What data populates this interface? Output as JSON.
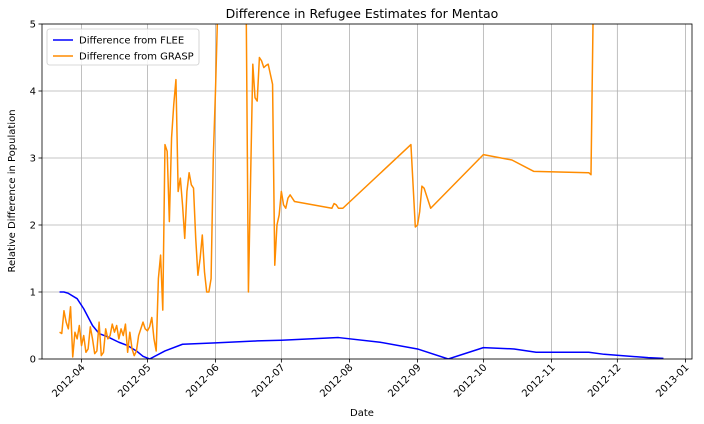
{
  "chart_data": {
    "type": "line",
    "title": "Difference in Refugee Estimates for Mentao",
    "xlabel": "Date",
    "ylabel": "Relative Difference in Population",
    "x_range": [
      "2012-03-14",
      "2013-01-04"
    ],
    "ylim": [
      0,
      5
    ],
    "y_ticks": [
      0,
      1,
      2,
      3,
      4,
      5
    ],
    "x_ticks": [
      "2012-04-01",
      "2012-05-01",
      "2012-06-01",
      "2012-07-01",
      "2012-08-01",
      "2012-09-01",
      "2012-10-01",
      "2012-11-01",
      "2012-12-01",
      "2013-01-01"
    ],
    "x_tick_labels": [
      "2012-04",
      "2012-05",
      "2012-06",
      "2012-07",
      "2012-08",
      "2012-09",
      "2012-10",
      "2012-11",
      "2012-12",
      "2013-01"
    ],
    "grid": true,
    "legend_position": "upper-left",
    "series": [
      {
        "name": "Difference from FLEE",
        "color": "#0000ff",
        "points": [
          [
            "2012-03-22",
            1.0
          ],
          [
            "2012-03-24",
            1.0
          ],
          [
            "2012-03-26",
            0.98
          ],
          [
            "2012-03-30",
            0.9
          ],
          [
            "2012-04-02",
            0.75
          ],
          [
            "2012-04-06",
            0.5
          ],
          [
            "2012-04-09",
            0.38
          ],
          [
            "2012-04-13",
            0.33
          ],
          [
            "2012-04-18",
            0.25
          ],
          [
            "2012-04-22",
            0.2
          ],
          [
            "2012-04-26",
            0.12
          ],
          [
            "2012-04-29",
            0.04
          ],
          [
            "2012-05-02",
            0.0
          ],
          [
            "2012-05-09",
            0.12
          ],
          [
            "2012-05-17",
            0.22
          ],
          [
            "2012-06-01",
            0.24
          ],
          [
            "2012-06-20",
            0.27
          ],
          [
            "2012-07-01",
            0.28
          ],
          [
            "2012-07-27",
            0.32
          ],
          [
            "2012-08-15",
            0.25
          ],
          [
            "2012-09-01",
            0.15
          ],
          [
            "2012-09-15",
            0.0
          ],
          [
            "2012-10-01",
            0.17
          ],
          [
            "2012-10-15",
            0.15
          ],
          [
            "2012-10-25",
            0.1
          ],
          [
            "2012-11-18",
            0.1
          ],
          [
            "2012-11-25",
            0.07
          ],
          [
            "2012-12-15",
            0.02
          ],
          [
            "2012-12-22",
            0.01
          ]
        ]
      },
      {
        "name": "Difference from GRASP",
        "color": "#ff8c00",
        "points": [
          [
            "2012-03-22",
            0.4
          ],
          [
            "2012-03-23",
            0.38
          ],
          [
            "2012-03-24",
            0.72
          ],
          [
            "2012-03-25",
            0.55
          ],
          [
            "2012-03-26",
            0.45
          ],
          [
            "2012-03-27",
            0.78
          ],
          [
            "2012-03-28",
            0.03
          ],
          [
            "2012-03-29",
            0.4
          ],
          [
            "2012-03-30",
            0.3
          ],
          [
            "2012-03-31",
            0.5
          ],
          [
            "2012-04-01",
            0.2
          ],
          [
            "2012-04-02",
            0.35
          ],
          [
            "2012-04-03",
            0.1
          ],
          [
            "2012-04-04",
            0.15
          ],
          [
            "2012-04-05",
            0.48
          ],
          [
            "2012-04-06",
            0.3
          ],
          [
            "2012-04-07",
            0.08
          ],
          [
            "2012-04-08",
            0.12
          ],
          [
            "2012-04-09",
            0.55
          ],
          [
            "2012-04-10",
            0.05
          ],
          [
            "2012-04-11",
            0.1
          ],
          [
            "2012-04-12",
            0.45
          ],
          [
            "2012-04-13",
            0.3
          ],
          [
            "2012-04-14",
            0.35
          ],
          [
            "2012-04-15",
            0.52
          ],
          [
            "2012-04-16",
            0.4
          ],
          [
            "2012-04-17",
            0.5
          ],
          [
            "2012-04-18",
            0.3
          ],
          [
            "2012-04-19",
            0.45
          ],
          [
            "2012-04-20",
            0.35
          ],
          [
            "2012-04-21",
            0.52
          ],
          [
            "2012-04-22",
            0.1
          ],
          [
            "2012-04-23",
            0.4
          ],
          [
            "2012-04-24",
            0.15
          ],
          [
            "2012-04-25",
            0.05
          ],
          [
            "2012-04-26",
            0.12
          ],
          [
            "2012-04-27",
            0.35
          ],
          [
            "2012-04-28",
            0.45
          ],
          [
            "2012-04-29",
            0.55
          ],
          [
            "2012-04-30",
            0.45
          ],
          [
            "2012-05-01",
            0.42
          ],
          [
            "2012-05-02",
            0.48
          ],
          [
            "2012-05-03",
            0.62
          ],
          [
            "2012-05-04",
            0.3
          ],
          [
            "2012-05-05",
            0.12
          ],
          [
            "2012-05-06",
            1.2
          ],
          [
            "2012-05-07",
            1.55
          ],
          [
            "2012-05-08",
            0.73
          ],
          [
            "2012-05-09",
            3.2
          ],
          [
            "2012-05-10",
            3.1
          ],
          [
            "2012-05-11",
            2.05
          ],
          [
            "2012-05-12",
            3.3
          ],
          [
            "2012-05-13",
            3.8
          ],
          [
            "2012-05-14",
            4.17
          ],
          [
            "2012-05-15",
            2.5
          ],
          [
            "2012-05-16",
            2.7
          ],
          [
            "2012-05-17",
            2.3
          ],
          [
            "2012-05-18",
            1.8
          ],
          [
            "2012-05-19",
            2.5
          ],
          [
            "2012-05-20",
            2.78
          ],
          [
            "2012-05-21",
            2.6
          ],
          [
            "2012-05-22",
            2.55
          ],
          [
            "2012-05-23",
            1.8
          ],
          [
            "2012-05-24",
            1.25
          ],
          [
            "2012-05-25",
            1.5
          ],
          [
            "2012-05-26",
            1.85
          ],
          [
            "2012-05-27",
            1.3
          ],
          [
            "2012-05-28",
            1.0
          ],
          [
            "2012-05-29",
            1.0
          ],
          [
            "2012-05-30",
            1.2
          ],
          [
            "2012-05-31",
            3.0
          ],
          [
            "2012-06-01",
            4.0
          ],
          [
            "2012-06-02",
            5.2
          ],
          [
            "2012-06-15",
            5.2
          ],
          [
            "2012-06-16",
            1.0
          ],
          [
            "2012-06-17",
            2.7
          ],
          [
            "2012-06-18",
            4.4
          ],
          [
            "2012-06-19",
            3.9
          ],
          [
            "2012-06-20",
            3.85
          ],
          [
            "2012-06-21",
            4.5
          ],
          [
            "2012-06-22",
            4.45
          ],
          [
            "2012-06-23",
            4.35
          ],
          [
            "2012-06-24",
            4.38
          ],
          [
            "2012-06-25",
            4.4
          ],
          [
            "2012-06-26",
            4.25
          ],
          [
            "2012-06-27",
            4.1
          ],
          [
            "2012-06-28",
            1.4
          ],
          [
            "2012-06-29",
            2.0
          ],
          [
            "2012-06-30",
            2.15
          ],
          [
            "2012-07-01",
            2.5
          ],
          [
            "2012-07-02",
            2.3
          ],
          [
            "2012-07-03",
            2.25
          ],
          [
            "2012-07-04",
            2.4
          ],
          [
            "2012-07-05",
            2.45
          ],
          [
            "2012-07-07",
            2.35
          ],
          [
            "2012-07-24",
            2.25
          ],
          [
            "2012-07-25",
            2.32
          ],
          [
            "2012-07-26",
            2.3
          ],
          [
            "2012-07-27",
            2.25
          ],
          [
            "2012-07-29",
            2.25
          ],
          [
            "2012-08-29",
            3.2
          ],
          [
            "2012-08-31",
            1.97
          ],
          [
            "2012-09-01",
            2.0
          ],
          [
            "2012-09-02",
            2.2
          ],
          [
            "2012-09-03",
            2.58
          ],
          [
            "2012-09-04",
            2.55
          ],
          [
            "2012-09-07",
            2.25
          ],
          [
            "2012-10-01",
            3.05
          ],
          [
            "2012-10-14",
            2.97
          ],
          [
            "2012-10-24",
            2.8
          ],
          [
            "2012-11-18",
            2.78
          ],
          [
            "2012-11-19",
            2.75
          ],
          [
            "2012-11-20",
            5.2
          ]
        ]
      }
    ]
  }
}
